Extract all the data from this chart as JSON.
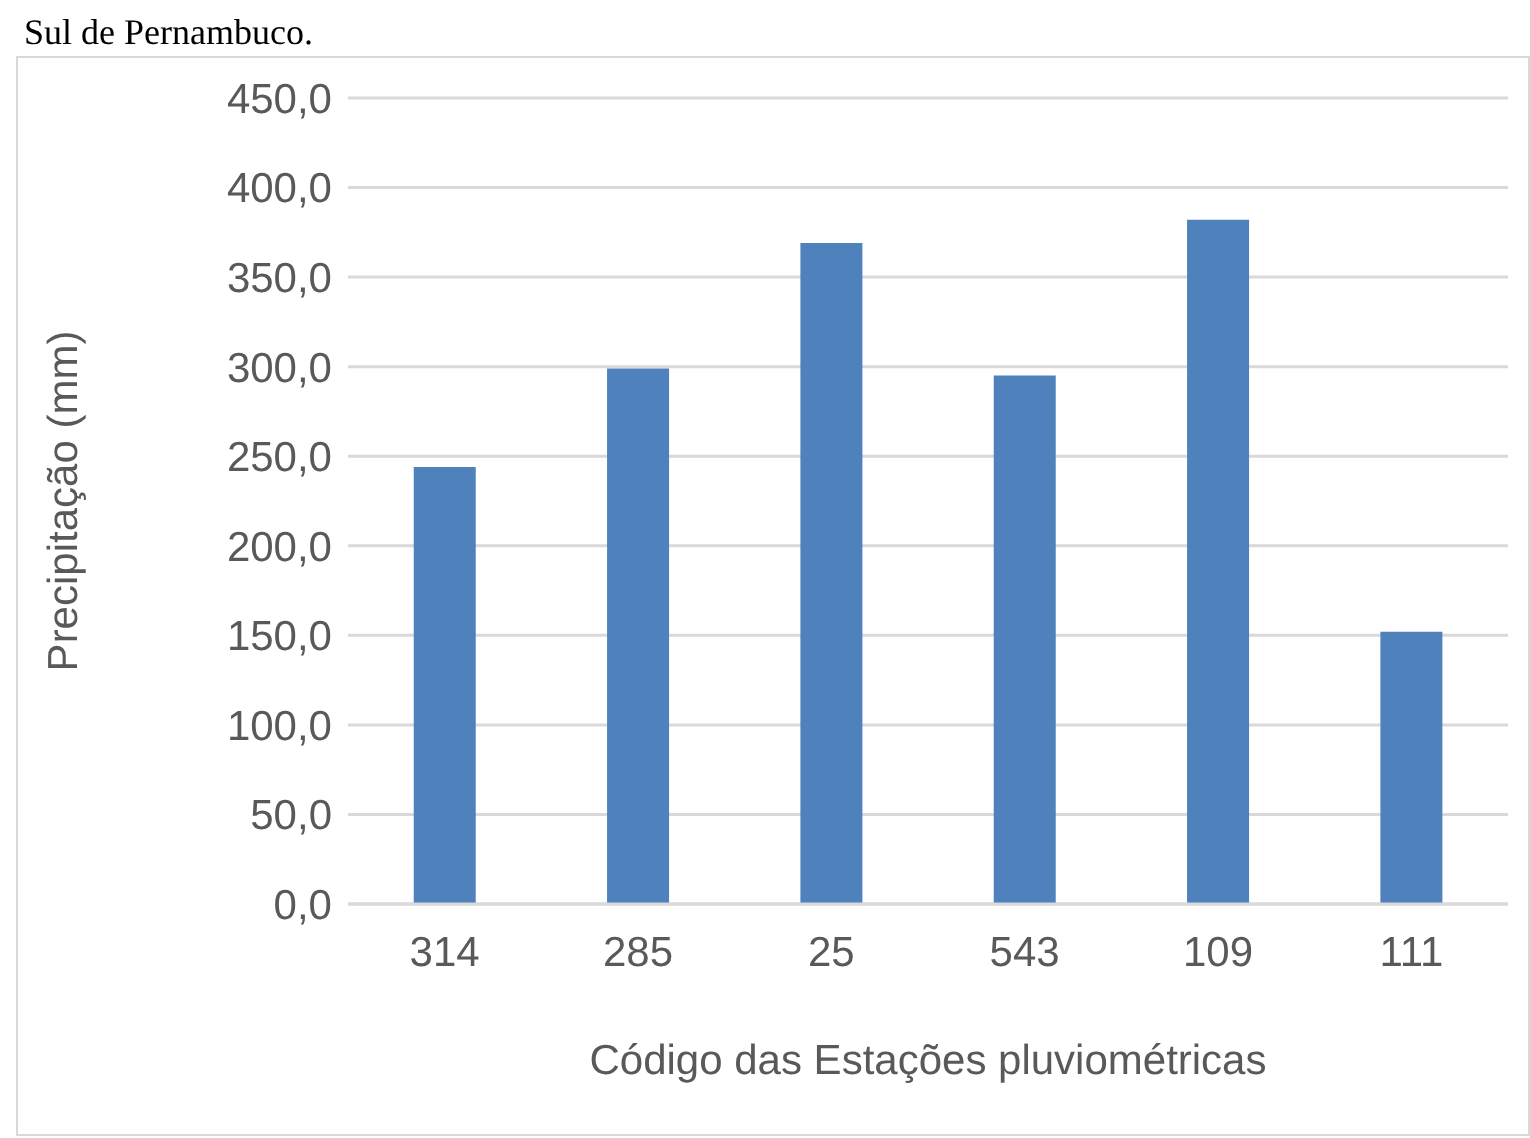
{
  "chart_data": {
    "type": "bar",
    "annotations": [
      "Sul de Pernambuco."
    ],
    "xlabel": "Código das Estações pluviométricas",
    "ylabel": "Precipitação (mm)",
    "categories": [
      "314",
      "285",
      "25",
      "543",
      "109",
      "111"
    ],
    "values": [
      244,
      299,
      369,
      295,
      382,
      152
    ],
    "color": "#4f81bd",
    "ylim": [
      0,
      450
    ],
    "yticks": [
      {
        "value": 0,
        "label": "0,0"
      },
      {
        "value": 50,
        "label": "50,0"
      },
      {
        "value": 100,
        "label": "100,0"
      },
      {
        "value": 150,
        "label": "150,0"
      },
      {
        "value": 200,
        "label": "200,0"
      },
      {
        "value": 250,
        "label": "250,0"
      },
      {
        "value": 300,
        "label": "300,0"
      },
      {
        "value": 350,
        "label": "350,0"
      },
      {
        "value": 400,
        "label": "400,0"
      },
      {
        "value": 450,
        "label": "450,0"
      }
    ],
    "grid": "y",
    "legend": false
  }
}
